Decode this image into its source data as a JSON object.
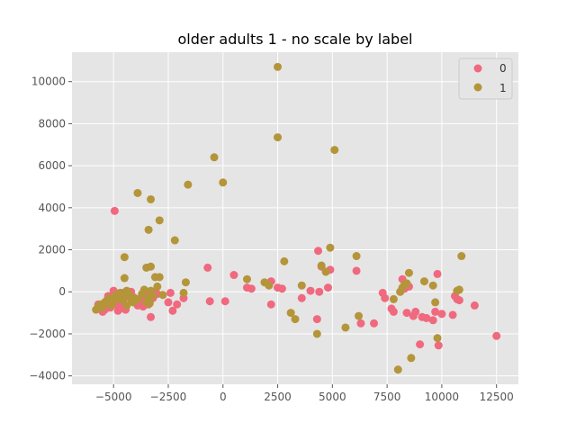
{
  "chart_data": {
    "type": "scatter",
    "title": "older adults 1 - no scale by label",
    "xlabel": "",
    "ylabel": "",
    "xlim": [
      -6900,
      13500
    ],
    "ylim": [
      -4400,
      11400
    ],
    "xticks": [
      -5000,
      -2500,
      0,
      2500,
      5000,
      7500,
      10000,
      12500
    ],
    "xtick_labels": [
      "−5000",
      "−2500",
      "0",
      "2500",
      "5000",
      "7500",
      "10000",
      "12500"
    ],
    "yticks": [
      -4000,
      -2000,
      0,
      2000,
      4000,
      6000,
      8000,
      10000
    ],
    "ytick_labels": [
      "−4000",
      "−2000",
      "0",
      "2000",
      "4000",
      "6000",
      "8000",
      "10000"
    ],
    "grid": true,
    "legend_position": "top-right",
    "series": [
      {
        "name": "0",
        "color": "#f0697f",
        "points": [
          [
            -4950,
            3850
          ],
          [
            -5000,
            50
          ],
          [
            -5100,
            -350
          ],
          [
            -5200,
            -500
          ],
          [
            -5300,
            -700
          ],
          [
            -5400,
            -850
          ],
          [
            -5500,
            -950
          ],
          [
            -5600,
            -700
          ],
          [
            -5700,
            -600
          ],
          [
            -4800,
            -900
          ],
          [
            -4700,
            -800
          ],
          [
            -4600,
            -550
          ],
          [
            -4500,
            -300
          ],
          [
            -4400,
            -200
          ],
          [
            -4300,
            -100
          ],
          [
            -4200,
            0
          ],
          [
            -4100,
            -250
          ],
          [
            -4000,
            -500
          ],
          [
            -3900,
            -650
          ],
          [
            -3800,
            -400
          ],
          [
            -3700,
            -200
          ],
          [
            -3600,
            -300
          ],
          [
            -3500,
            -100
          ],
          [
            -3400,
            -600
          ],
          [
            -3300,
            -1200
          ],
          [
            -3200,
            -300
          ],
          [
            -3100,
            -50
          ],
          [
            -4900,
            -600
          ],
          [
            -5150,
            -750
          ],
          [
            -4650,
            -50
          ],
          [
            -2500,
            -500
          ],
          [
            -2400,
            -50
          ],
          [
            -2300,
            -900
          ],
          [
            -2100,
            -600
          ],
          [
            -1800,
            -300
          ],
          [
            -700,
            1150
          ],
          [
            -600,
            -450
          ],
          [
            100,
            -450
          ],
          [
            500,
            800
          ],
          [
            1100,
            200
          ],
          [
            1300,
            150
          ],
          [
            2200,
            500
          ],
          [
            2200,
            -600
          ],
          [
            2500,
            200
          ],
          [
            2700,
            150
          ],
          [
            3600,
            -300
          ],
          [
            4000,
            50
          ],
          [
            4300,
            -1300
          ],
          [
            4350,
            1950
          ],
          [
            4400,
            0
          ],
          [
            4500,
            1200
          ],
          [
            4800,
            200
          ],
          [
            4900,
            1050
          ],
          [
            6100,
            1000
          ],
          [
            6300,
            -1500
          ],
          [
            6900,
            -1500
          ],
          [
            7300,
            -50
          ],
          [
            7400,
            -300
          ],
          [
            7700,
            -800
          ],
          [
            7800,
            -950
          ],
          [
            8100,
            0
          ],
          [
            8200,
            600
          ],
          [
            8300,
            150
          ],
          [
            8400,
            -1000
          ],
          [
            8500,
            250
          ],
          [
            8700,
            -1150
          ],
          [
            8800,
            -950
          ],
          [
            9000,
            -2500
          ],
          [
            9100,
            -1200
          ],
          [
            9300,
            -1250
          ],
          [
            9600,
            -1350
          ],
          [
            9700,
            -950
          ],
          [
            9800,
            850
          ],
          [
            9850,
            -2550
          ],
          [
            10000,
            -1050
          ],
          [
            10500,
            -1100
          ],
          [
            10600,
            -200
          ],
          [
            10700,
            -350
          ],
          [
            10800,
            -400
          ],
          [
            11500,
            -650
          ],
          [
            12500,
            -2100
          ],
          [
            -5250,
            -200
          ],
          [
            -4450,
            -850
          ],
          [
            -3650,
            -700
          ],
          [
            -3000,
            -100
          ]
        ]
      },
      {
        "name": "1",
        "color": "#b5953a",
        "points": [
          [
            2500,
            10700
          ],
          [
            2500,
            7350
          ],
          [
            5100,
            6750
          ],
          [
            -400,
            6400
          ],
          [
            0,
            5200
          ],
          [
            -1600,
            5100
          ],
          [
            -3900,
            4700
          ],
          [
            -3300,
            4400
          ],
          [
            -2900,
            3400
          ],
          [
            -3400,
            2950
          ],
          [
            -2200,
            2450
          ],
          [
            -4500,
            1650
          ],
          [
            -3500,
            1150
          ],
          [
            -3300,
            1200
          ],
          [
            -3100,
            700
          ],
          [
            -3000,
            250
          ],
          [
            -2900,
            700
          ],
          [
            -4500,
            650
          ],
          [
            -1700,
            450
          ],
          [
            -1800,
            -50
          ],
          [
            -3200,
            -200
          ],
          [
            -3300,
            50
          ],
          [
            -3400,
            -300
          ],
          [
            -3500,
            -500
          ],
          [
            -3600,
            100
          ],
          [
            -3700,
            -100
          ],
          [
            -4100,
            -500
          ],
          [
            -4200,
            -350
          ],
          [
            -4300,
            -100
          ],
          [
            -4400,
            50
          ],
          [
            -4500,
            -200
          ],
          [
            -4600,
            -400
          ],
          [
            -4700,
            -50
          ],
          [
            -4800,
            -300
          ],
          [
            -5000,
            -450
          ],
          [
            -5100,
            -650
          ],
          [
            -5400,
            -500
          ],
          [
            -5600,
            -600
          ],
          [
            -5800,
            -850
          ],
          [
            -5700,
            -700
          ],
          [
            -5500,
            -750
          ],
          [
            -5300,
            -400
          ],
          [
            -5200,
            -300
          ],
          [
            -4900,
            -150
          ],
          [
            -4400,
            -650
          ],
          [
            -3900,
            -350
          ],
          [
            1100,
            600
          ],
          [
            1900,
            450
          ],
          [
            2100,
            300
          ],
          [
            2800,
            1450
          ],
          [
            3100,
            -1000
          ],
          [
            3300,
            -1300
          ],
          [
            3600,
            300
          ],
          [
            4300,
            -2000
          ],
          [
            4500,
            1250
          ],
          [
            4700,
            950
          ],
          [
            4900,
            2100
          ],
          [
            5600,
            -1700
          ],
          [
            6100,
            1700
          ],
          [
            6200,
            -1150
          ],
          [
            7800,
            -350
          ],
          [
            8000,
            -3700
          ],
          [
            8100,
            0
          ],
          [
            8200,
            200
          ],
          [
            8300,
            350
          ],
          [
            8400,
            400
          ],
          [
            8500,
            900
          ],
          [
            8600,
            -3150
          ],
          [
            9200,
            500
          ],
          [
            9600,
            300
          ],
          [
            9700,
            -500
          ],
          [
            9800,
            -2200
          ],
          [
            10700,
            50
          ],
          [
            10800,
            100
          ],
          [
            10900,
            1700
          ],
          [
            -3350,
            -550
          ],
          [
            -4050,
            -300
          ],
          [
            -2750,
            -150
          ]
        ]
      }
    ]
  }
}
